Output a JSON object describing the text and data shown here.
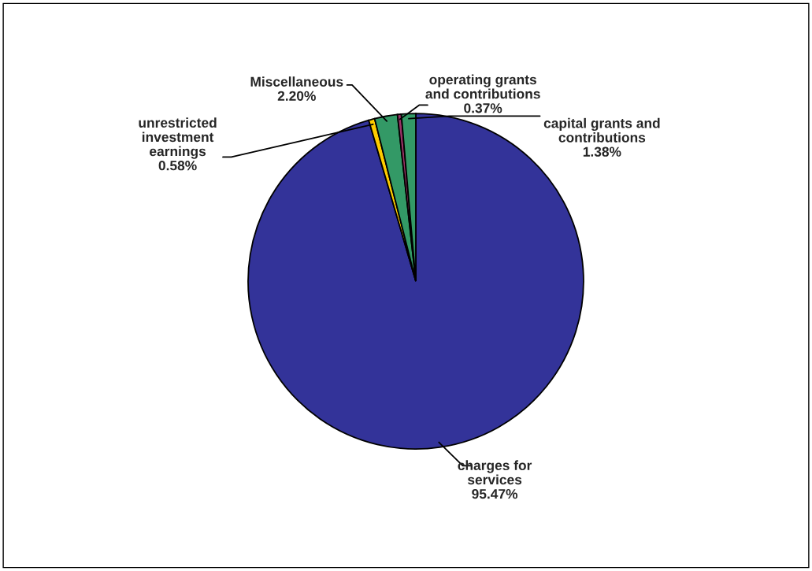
{
  "chart_data": {
    "type": "pie",
    "categories": [
      "charges for services",
      "unrestricted investment earnings",
      "Miscellaneous",
      "operating grants and contributions",
      "capital grants and contributions"
    ],
    "values": [
      95.47,
      0.58,
      2.2,
      0.37,
      1.38
    ],
    "value_labels": [
      "95.47%",
      "0.58%",
      "2.20%",
      "0.37%",
      "1.38%"
    ],
    "colors": [
      "#333399",
      "#ffcc00",
      "#339966",
      "#993366",
      "#339966"
    ]
  }
}
